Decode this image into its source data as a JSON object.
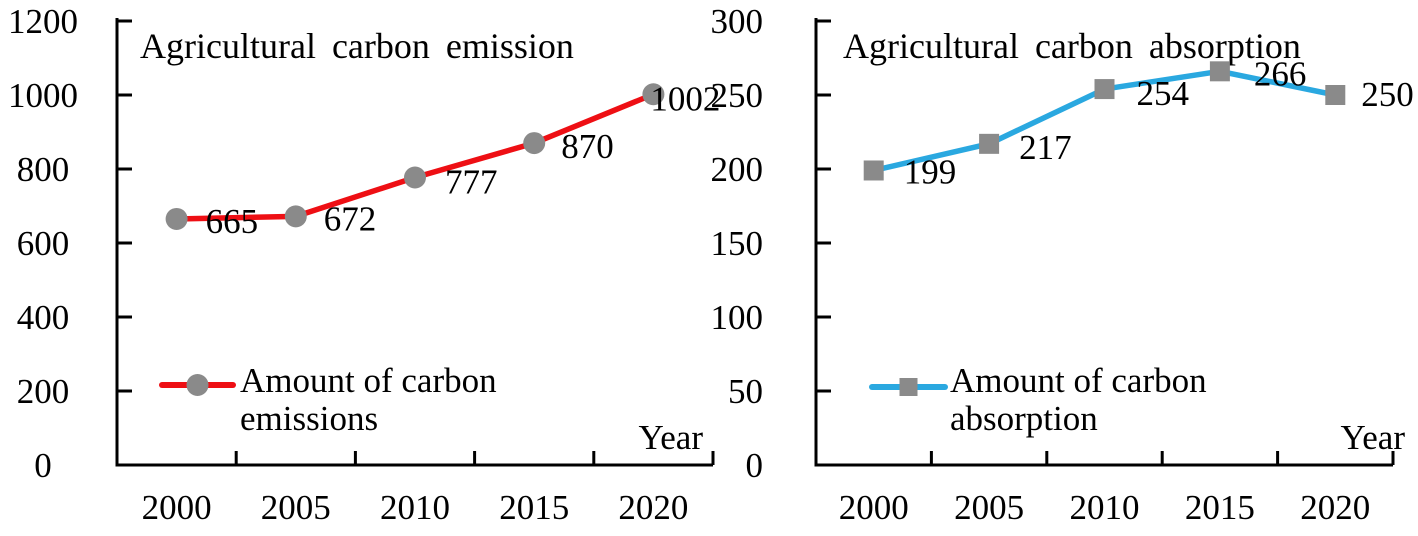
{
  "figure": {
    "background": "#ffffff",
    "axis_color": "#000000",
    "text_color": "#000000"
  },
  "chart_data": [
    {
      "type": "line",
      "title": "Agricultural carbon emission",
      "categories": [
        "2000",
        "2005",
        "2010",
        "2015",
        "2020"
      ],
      "series": [
        {
          "name": "Amount of carbon emissions",
          "values": [
            665,
            672,
            777,
            870,
            1002
          ],
          "color": "#ee0f14",
          "marker": "circle",
          "marker_color": "#8a8a8a"
        }
      ],
      "data_labels": [
        "665",
        "672",
        "777",
        "870",
        "1002"
      ],
      "legend_lines": [
        "Amount of carbon",
        "emissions"
      ],
      "legend_position": "inside-bottom-left",
      "xlabel": "Year",
      "ylim": [
        0,
        1200
      ],
      "yticks": [
        "0",
        "200",
        "400",
        "600",
        "800",
        "1000",
        "1200"
      ],
      "ytick_values": [
        0,
        200,
        400,
        600,
        800,
        1000,
        1200
      ],
      "grid": false
    },
    {
      "type": "line",
      "title": "Agricultural carbon absorption",
      "categories": [
        "2000",
        "2005",
        "2010",
        "2015",
        "2020"
      ],
      "series": [
        {
          "name": "Amount of carbon absorption",
          "values": [
            199,
            217,
            254,
            266,
            250
          ],
          "color": "#2aa8e0",
          "marker": "square",
          "marker_color": "#8a8a8a"
        }
      ],
      "data_labels": [
        "199",
        "217",
        "254",
        "266",
        "250"
      ],
      "legend_lines": [
        "Amount of carbon",
        "absorption"
      ],
      "legend_position": "inside-bottom-left",
      "xlabel": "Year",
      "ylim": [
        0,
        300
      ],
      "yticks": [
        "0",
        "50",
        "100",
        "150",
        "200",
        "250",
        "300"
      ],
      "ytick_values": [
        0,
        50,
        100,
        150,
        200,
        250,
        300
      ],
      "grid": false
    }
  ]
}
